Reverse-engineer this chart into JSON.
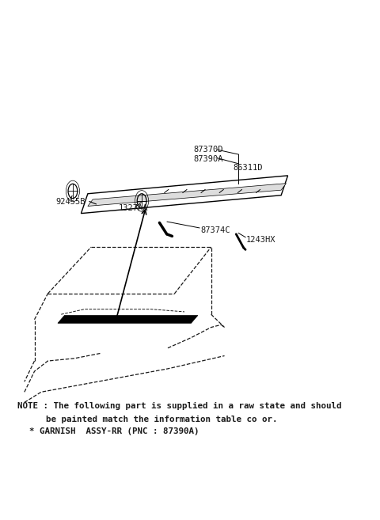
{
  "bg_color": "#ffffff",
  "fig_width": 4.8,
  "fig_height": 6.57,
  "dpi": 100,
  "note_line1": "NOTE : The following part is supplied in a raw state and should",
  "note_line2": "be painted match the information table co or.",
  "note_line3": "* GARNISH  ASSY-RR (PNC : 87390A)",
  "text_color": "#1a1a1a",
  "label_fontsize": 7.5,
  "note_fontsize": 7.8
}
